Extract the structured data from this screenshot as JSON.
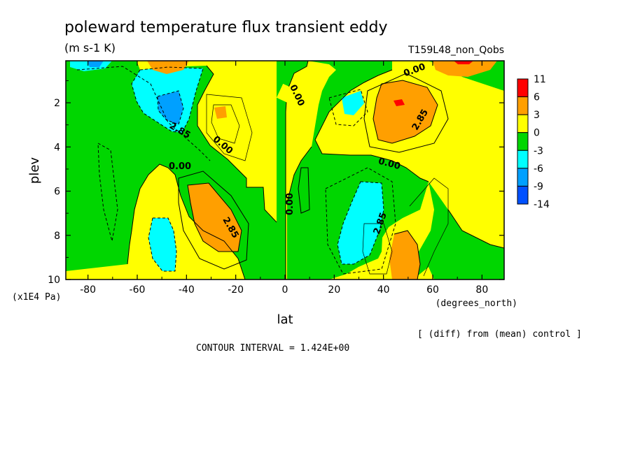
{
  "chart_data": {
    "type": "heatmap",
    "title": "poleward temperature flux transient eddy",
    "units": "(m s-1 K)",
    "run_label": "T159L48_non_Qobs",
    "xlabel": "lat",
    "ylabel": "plev",
    "x_unit_label": "(degrees_north)",
    "y_unit_label": "(x1E4 Pa)",
    "x_ticks": [
      "-80",
      "-60",
      "-40",
      "-20",
      "0",
      "20",
      "40",
      "60",
      "80"
    ],
    "x_tick_values": [
      -80,
      -60,
      -40,
      -20,
      0,
      20,
      40,
      60,
      80
    ],
    "y_ticks": [
      "2",
      "4",
      "6",
      "8",
      "10"
    ],
    "y_tick_values": [
      2,
      4,
      6,
      8,
      10
    ],
    "xlim": [
      -89,
      89
    ],
    "ylim": [
      10,
      0.1
    ],
    "y_inverted": true,
    "colorbar": {
      "labels": [
        "11",
        "6",
        "3",
        "0",
        "-3",
        "-6",
        "-9",
        "-14"
      ],
      "colors": [
        "#ff0000",
        "#ff9f00",
        "#ffff00",
        "#00d600",
        "#00ffff",
        "#00a0ff",
        "#0050ff"
      ]
    },
    "contour_labels": [
      {
        "text": "0.00",
        "lat": 3,
        "plev": 1.2
      },
      {
        "text": "0.00",
        "lat": 54,
        "plev": 0.3
      },
      {
        "text": "2.85",
        "lat": 55,
        "plev": 2.3
      },
      {
        "text": "2.85",
        "lat": -42,
        "plev": 3.5
      },
      {
        "text": "0.00",
        "lat": -26,
        "plev": 4.1
      },
      {
        "text": "0.00",
        "lat": -42,
        "plev": 4.8
      },
      {
        "text": "0.00",
        "lat": 43,
        "plev": 4.8
      },
      {
        "text": "0.00",
        "lat": 0,
        "plev": 7.0
      },
      {
        "text": "2.85",
        "lat": 37,
        "plev": 6.8
      },
      {
        "text": "2.85",
        "lat": -25,
        "plev": 7.5
      }
    ],
    "note": "[ (diff) from (mean) control ]",
    "contour_interval": "CONTOUR INTERVAL = 1.424E+00"
  }
}
